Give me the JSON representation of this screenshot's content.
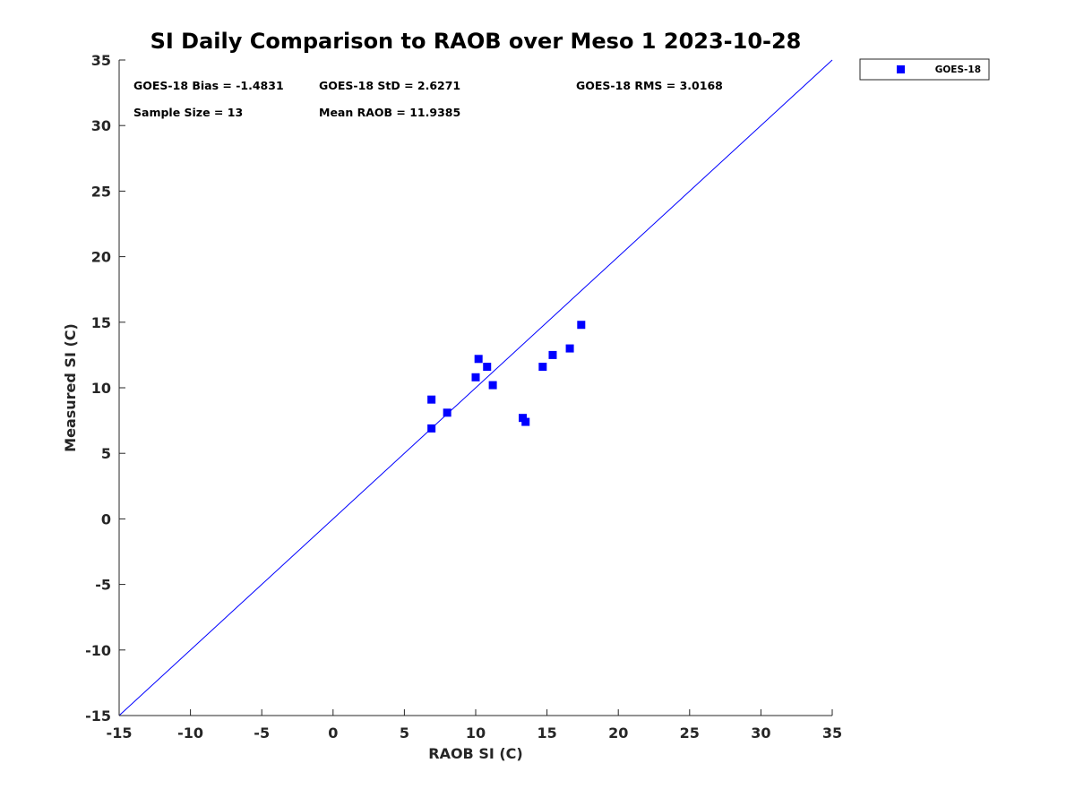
{
  "chart_data": {
    "type": "scatter",
    "title": "SI Daily Comparison to RAOB over Meso 1 2023-10-28",
    "xlabel": "RAOB SI (C)",
    "ylabel": "Measured SI (C)",
    "xlim": [
      -15,
      35
    ],
    "ylim": [
      -15,
      35
    ],
    "xticks": [
      -15,
      -10,
      -5,
      0,
      5,
      10,
      15,
      20,
      25,
      30,
      35
    ],
    "yticks": [
      -15,
      -10,
      -5,
      0,
      5,
      10,
      15,
      20,
      25,
      30,
      35
    ],
    "xtick_labels": [
      "-15",
      "-10",
      "-5",
      "0",
      "5",
      "10",
      "15",
      "20",
      "25",
      "30",
      "35"
    ],
    "ytick_labels": [
      "-15",
      "-10",
      "-5",
      "0",
      "5",
      "10",
      "15",
      "20",
      "25",
      "30",
      "35"
    ],
    "grid": false,
    "legend_position": "top-right, outside plot area",
    "reference_line": {
      "type": "one-to-one",
      "color": "#0000ff"
    },
    "series": [
      {
        "name": "GOES-18",
        "marker": "square",
        "color": "#0000ff",
        "points": [
          {
            "x": 6.9,
            "y": 9.1
          },
          {
            "x": 6.9,
            "y": 6.9
          },
          {
            "x": 8.0,
            "y": 8.1
          },
          {
            "x": 10.0,
            "y": 10.8
          },
          {
            "x": 10.2,
            "y": 12.2
          },
          {
            "x": 10.8,
            "y": 11.6
          },
          {
            "x": 11.2,
            "y": 10.2
          },
          {
            "x": 13.3,
            "y": 7.7
          },
          {
            "x": 13.5,
            "y": 7.4
          },
          {
            "x": 14.7,
            "y": 11.6
          },
          {
            "x": 15.4,
            "y": 12.5
          },
          {
            "x": 16.6,
            "y": 13.0
          },
          {
            "x": 17.4,
            "y": 14.8
          }
        ]
      }
    ],
    "stats_annotations": {
      "bias": "GOES-18 Bias = -1.4831",
      "std": "GOES-18 StD = 2.6271",
      "rms": "GOES-18 RMS = 3.0168",
      "sample_size": "Sample Size = 13",
      "mean_raob": "Mean RAOB = 11.9385"
    }
  }
}
